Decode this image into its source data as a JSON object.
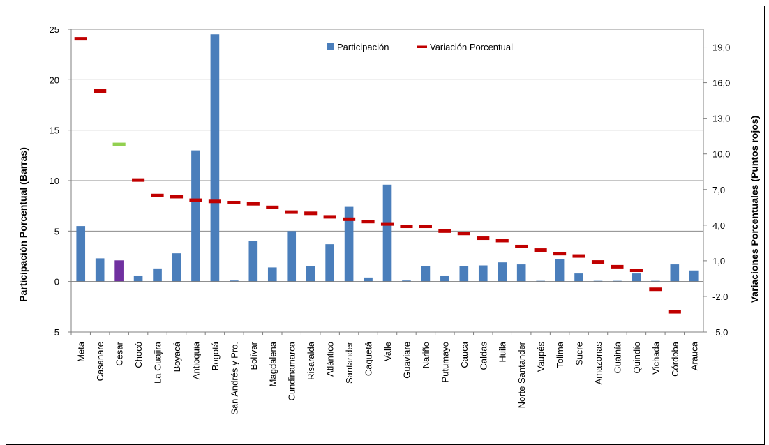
{
  "chart_data": {
    "type": "bar",
    "ylabel": "Participación Porcentual  (Barras)",
    "y2label": "Variaciones Porcentuales (Puntos rojos)",
    "ylim": [
      -5,
      25
    ],
    "y2lim": [
      -5.0,
      20.5
    ],
    "yticks": [
      "-5",
      "0",
      "5",
      "10",
      "15",
      "20",
      "25"
    ],
    "y2ticks": [
      "-5,0",
      "-2,0",
      "1,0",
      "4,0",
      "7,0",
      "10,0",
      "13,0",
      "16,0",
      "19,0"
    ],
    "grid": true,
    "legend_position": "top-center",
    "categories": [
      "Meta",
      "Casanare",
      "Cesar",
      "Chocó",
      "La Guajira",
      "Boyacá",
      "Antioquia",
      "Bogotá",
      "San Andrés y Pro.",
      "Bolívar",
      "Magdalena",
      "Cundinamarca",
      "Risaralda",
      "Atlántico",
      "Santander",
      "Caquetá",
      "Valle",
      "Guaviare",
      "Nariño",
      "Putumayo",
      "Cauca",
      "Caldas",
      "Huila",
      "Norte Santander",
      "Vaupés",
      "Tolima",
      "Sucre",
      "Amazonas",
      "Guainía",
      "Quindío",
      "Vichada",
      "Córdoba",
      "Arauca"
    ],
    "series": [
      {
        "name": "Participación",
        "kind": "bar",
        "axis": "left",
        "color": "#4a7ebb",
        "highlight_color": "#7030a0",
        "highlight_index": 2,
        "values": [
          5.5,
          2.3,
          2.1,
          0.6,
          1.3,
          2.8,
          13.0,
          24.5,
          0.1,
          4.0,
          1.4,
          5.0,
          1.5,
          3.7,
          7.4,
          0.4,
          9.6,
          0.1,
          1.5,
          0.6,
          1.5,
          1.6,
          1.9,
          1.7,
          0.05,
          2.2,
          0.8,
          0.05,
          0.05,
          0.8,
          0.05,
          1.7,
          1.1
        ]
      },
      {
        "name": "Variación  Porcentual",
        "kind": "dash",
        "axis": "right",
        "color": "#c00000",
        "highlight_color": "#92d050",
        "highlight_index": 2,
        "values": [
          19.7,
          15.3,
          10.8,
          7.8,
          6.5,
          6.4,
          6.1,
          6.0,
          5.9,
          5.8,
          5.5,
          5.1,
          5.0,
          4.7,
          4.5,
          4.3,
          4.1,
          3.9,
          3.9,
          3.5,
          3.3,
          2.9,
          2.7,
          2.2,
          1.9,
          1.6,
          1.4,
          0.9,
          0.5,
          0.2,
          -1.4,
          -3.3,
          null
        ]
      }
    ]
  }
}
